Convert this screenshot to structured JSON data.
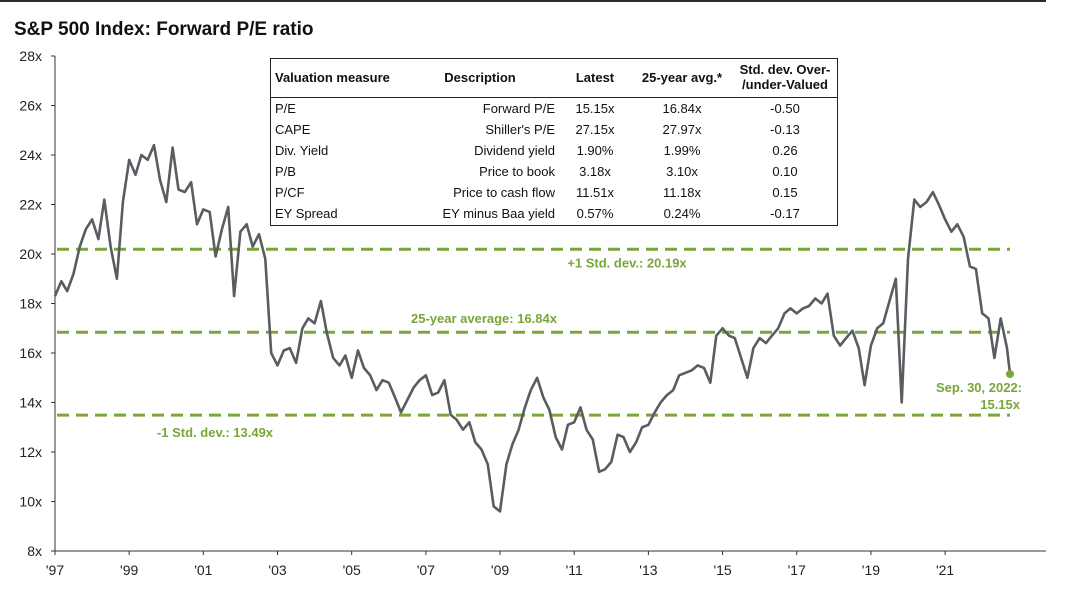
{
  "title": "S&P 500 Index: Forward P/E ratio",
  "colors": {
    "line": "#595c61",
    "reference": "#7aa53a",
    "text": "#222222"
  },
  "chart_data": {
    "type": "line",
    "title": "S&P 500 Index: Forward P/E ratio",
    "xlabel": "",
    "ylabel": "",
    "xlim": [
      1997.0,
      2022.75
    ],
    "ylim": [
      8,
      28
    ],
    "x_ticks": [
      1997,
      1999,
      2001,
      2003,
      2005,
      2007,
      2009,
      2011,
      2013,
      2015,
      2017,
      2019,
      2021
    ],
    "x_tick_labels": [
      "'97",
      "'99",
      "'01",
      "'03",
      "'05",
      "'07",
      "'09",
      "'11",
      "'13",
      "'15",
      "'17",
      "'19",
      "'21"
    ],
    "y_ticks": [
      8,
      10,
      12,
      14,
      16,
      18,
      20,
      22,
      24,
      26,
      28
    ],
    "y_tick_labels": [
      "8x",
      "10x",
      "12x",
      "14x",
      "16x",
      "18x",
      "20x",
      "22x",
      "24x",
      "26x",
      "28x"
    ],
    "reference_lines": [
      {
        "name": "plus-one-std",
        "value": 20.19,
        "label": "+1 Std. dev.: 20.19x"
      },
      {
        "name": "average",
        "value": 16.84,
        "label": "25-year average: 16.84x"
      },
      {
        "name": "minus-one-std",
        "value": 13.49,
        "label": "-1 Std. dev.: 13.49x"
      }
    ],
    "endpoint": {
      "x": 2022.75,
      "y": 15.15,
      "label_line1": "Sep. 30, 2022:",
      "label_line2": "15.15x"
    },
    "series": [
      {
        "name": "Forward P/E",
        "points": [
          [
            1997.0,
            18.3
          ],
          [
            1997.17,
            18.9
          ],
          [
            1997.33,
            18.5
          ],
          [
            1997.5,
            19.2
          ],
          [
            1997.67,
            20.3
          ],
          [
            1997.83,
            21.0
          ],
          [
            1998.0,
            21.4
          ],
          [
            1998.17,
            20.6
          ],
          [
            1998.33,
            22.2
          ],
          [
            1998.5,
            20.3
          ],
          [
            1998.67,
            19.0
          ],
          [
            1998.83,
            22.1
          ],
          [
            1999.0,
            23.8
          ],
          [
            1999.17,
            23.2
          ],
          [
            1999.33,
            24.0
          ],
          [
            1999.5,
            23.8
          ],
          [
            1999.67,
            24.4
          ],
          [
            1999.83,
            23.0
          ],
          [
            2000.0,
            22.1
          ],
          [
            2000.17,
            24.3
          ],
          [
            2000.33,
            22.6
          ],
          [
            2000.5,
            22.5
          ],
          [
            2000.67,
            22.9
          ],
          [
            2000.83,
            21.2
          ],
          [
            2001.0,
            21.8
          ],
          [
            2001.17,
            21.7
          ],
          [
            2001.33,
            19.9
          ],
          [
            2001.5,
            21.0
          ],
          [
            2001.67,
            21.9
          ],
          [
            2001.83,
            18.3
          ],
          [
            2002.0,
            20.9
          ],
          [
            2002.17,
            21.2
          ],
          [
            2002.33,
            20.3
          ],
          [
            2002.5,
            20.8
          ],
          [
            2002.67,
            19.8
          ],
          [
            2002.83,
            16.0
          ],
          [
            2003.0,
            15.5
          ],
          [
            2003.17,
            16.1
          ],
          [
            2003.33,
            16.2
          ],
          [
            2003.5,
            15.6
          ],
          [
            2003.67,
            17.0
          ],
          [
            2003.83,
            17.4
          ],
          [
            2004.0,
            17.2
          ],
          [
            2004.17,
            18.1
          ],
          [
            2004.33,
            16.8
          ],
          [
            2004.5,
            15.8
          ],
          [
            2004.67,
            15.5
          ],
          [
            2004.83,
            15.9
          ],
          [
            2005.0,
            15.0
          ],
          [
            2005.17,
            16.1
          ],
          [
            2005.33,
            15.4
          ],
          [
            2005.5,
            15.1
          ],
          [
            2005.67,
            14.5
          ],
          [
            2005.83,
            14.9
          ],
          [
            2006.0,
            14.8
          ],
          [
            2006.17,
            14.2
          ],
          [
            2006.33,
            13.6
          ],
          [
            2006.5,
            14.1
          ],
          [
            2006.67,
            14.6
          ],
          [
            2006.83,
            14.9
          ],
          [
            2007.0,
            15.1
          ],
          [
            2007.17,
            14.3
          ],
          [
            2007.33,
            14.4
          ],
          [
            2007.5,
            14.9
          ],
          [
            2007.67,
            13.5
          ],
          [
            2007.83,
            13.3
          ],
          [
            2008.0,
            12.9
          ],
          [
            2008.17,
            13.2
          ],
          [
            2008.33,
            12.4
          ],
          [
            2008.5,
            12.1
          ],
          [
            2008.67,
            11.5
          ],
          [
            2008.83,
            9.8
          ],
          [
            2009.0,
            9.6
          ],
          [
            2009.17,
            11.5
          ],
          [
            2009.33,
            12.3
          ],
          [
            2009.5,
            12.9
          ],
          [
            2009.67,
            13.8
          ],
          [
            2009.83,
            14.5
          ],
          [
            2010.0,
            15.0
          ],
          [
            2010.17,
            14.2
          ],
          [
            2010.33,
            13.7
          ],
          [
            2010.5,
            12.6
          ],
          [
            2010.67,
            12.1
          ],
          [
            2010.83,
            13.1
          ],
          [
            2011.0,
            13.2
          ],
          [
            2011.17,
            13.8
          ],
          [
            2011.33,
            12.9
          ],
          [
            2011.5,
            12.5
          ],
          [
            2011.67,
            11.2
          ],
          [
            2011.83,
            11.3
          ],
          [
            2012.0,
            11.6
          ],
          [
            2012.17,
            12.7
          ],
          [
            2012.33,
            12.6
          ],
          [
            2012.5,
            12.0
          ],
          [
            2012.67,
            12.4
          ],
          [
            2012.83,
            13.0
          ],
          [
            2013.0,
            13.1
          ],
          [
            2013.17,
            13.6
          ],
          [
            2013.33,
            14.0
          ],
          [
            2013.5,
            14.3
          ],
          [
            2013.67,
            14.5
          ],
          [
            2013.83,
            15.1
          ],
          [
            2014.0,
            15.2
          ],
          [
            2014.17,
            15.3
          ],
          [
            2014.33,
            15.5
          ],
          [
            2014.5,
            15.4
          ],
          [
            2014.67,
            14.8
          ],
          [
            2014.83,
            16.7
          ],
          [
            2015.0,
            17.0
          ],
          [
            2015.17,
            16.7
          ],
          [
            2015.33,
            16.6
          ],
          [
            2015.5,
            15.8
          ],
          [
            2015.67,
            15.0
          ],
          [
            2015.83,
            16.2
          ],
          [
            2016.0,
            16.6
          ],
          [
            2016.17,
            16.4
          ],
          [
            2016.33,
            16.7
          ],
          [
            2016.5,
            17.0
          ],
          [
            2016.67,
            17.6
          ],
          [
            2016.83,
            17.8
          ],
          [
            2017.0,
            17.6
          ],
          [
            2017.17,
            17.8
          ],
          [
            2017.33,
            17.9
          ],
          [
            2017.5,
            18.2
          ],
          [
            2017.67,
            18.0
          ],
          [
            2017.83,
            18.4
          ],
          [
            2018.0,
            16.7
          ],
          [
            2018.17,
            16.3
          ],
          [
            2018.33,
            16.6
          ],
          [
            2018.5,
            16.9
          ],
          [
            2018.67,
            16.2
          ],
          [
            2018.83,
            14.7
          ],
          [
            2019.0,
            16.3
          ],
          [
            2019.17,
            17.0
          ],
          [
            2019.33,
            17.2
          ],
          [
            2019.5,
            18.1
          ],
          [
            2019.67,
            19.0
          ],
          [
            2019.83,
            14.0
          ],
          [
            2020.0,
            19.8
          ],
          [
            2020.17,
            22.2
          ],
          [
            2020.33,
            21.9
          ],
          [
            2020.5,
            22.1
          ],
          [
            2020.67,
            22.5
          ],
          [
            2020.83,
            22.0
          ],
          [
            2021.0,
            21.4
          ],
          [
            2021.17,
            20.9
          ],
          [
            2021.33,
            21.2
          ],
          [
            2021.5,
            20.7
          ],
          [
            2021.67,
            19.5
          ],
          [
            2021.83,
            19.4
          ],
          [
            2022.0,
            17.6
          ],
          [
            2022.17,
            17.4
          ],
          [
            2022.33,
            15.8
          ],
          [
            2022.5,
            17.4
          ],
          [
            2022.67,
            16.2
          ],
          [
            2022.75,
            15.15
          ]
        ]
      }
    ]
  },
  "table": {
    "headers": [
      "Valuation measure",
      "Description",
      "Latest",
      "25-year avg.*",
      "Std. dev. Over-\n/under-Valued"
    ],
    "rows": [
      [
        "P/E",
        "Forward P/E",
        "15.15x",
        "16.84x",
        "-0.50"
      ],
      [
        "CAPE",
        "Shiller's P/E",
        "27.15x",
        "27.97x",
        "-0.13"
      ],
      [
        "Div. Yield",
        "Dividend yield",
        "1.90%",
        "1.99%",
        "0.26"
      ],
      [
        "P/B",
        "Price to book",
        "3.18x",
        "3.10x",
        "0.10"
      ],
      [
        "P/CF",
        "Price to cash flow",
        "11.51x",
        "11.18x",
        "0.15"
      ],
      [
        "EY Spread",
        "EY minus Baa yield",
        "0.57%",
        "0.24%",
        "-0.17"
      ]
    ]
  }
}
